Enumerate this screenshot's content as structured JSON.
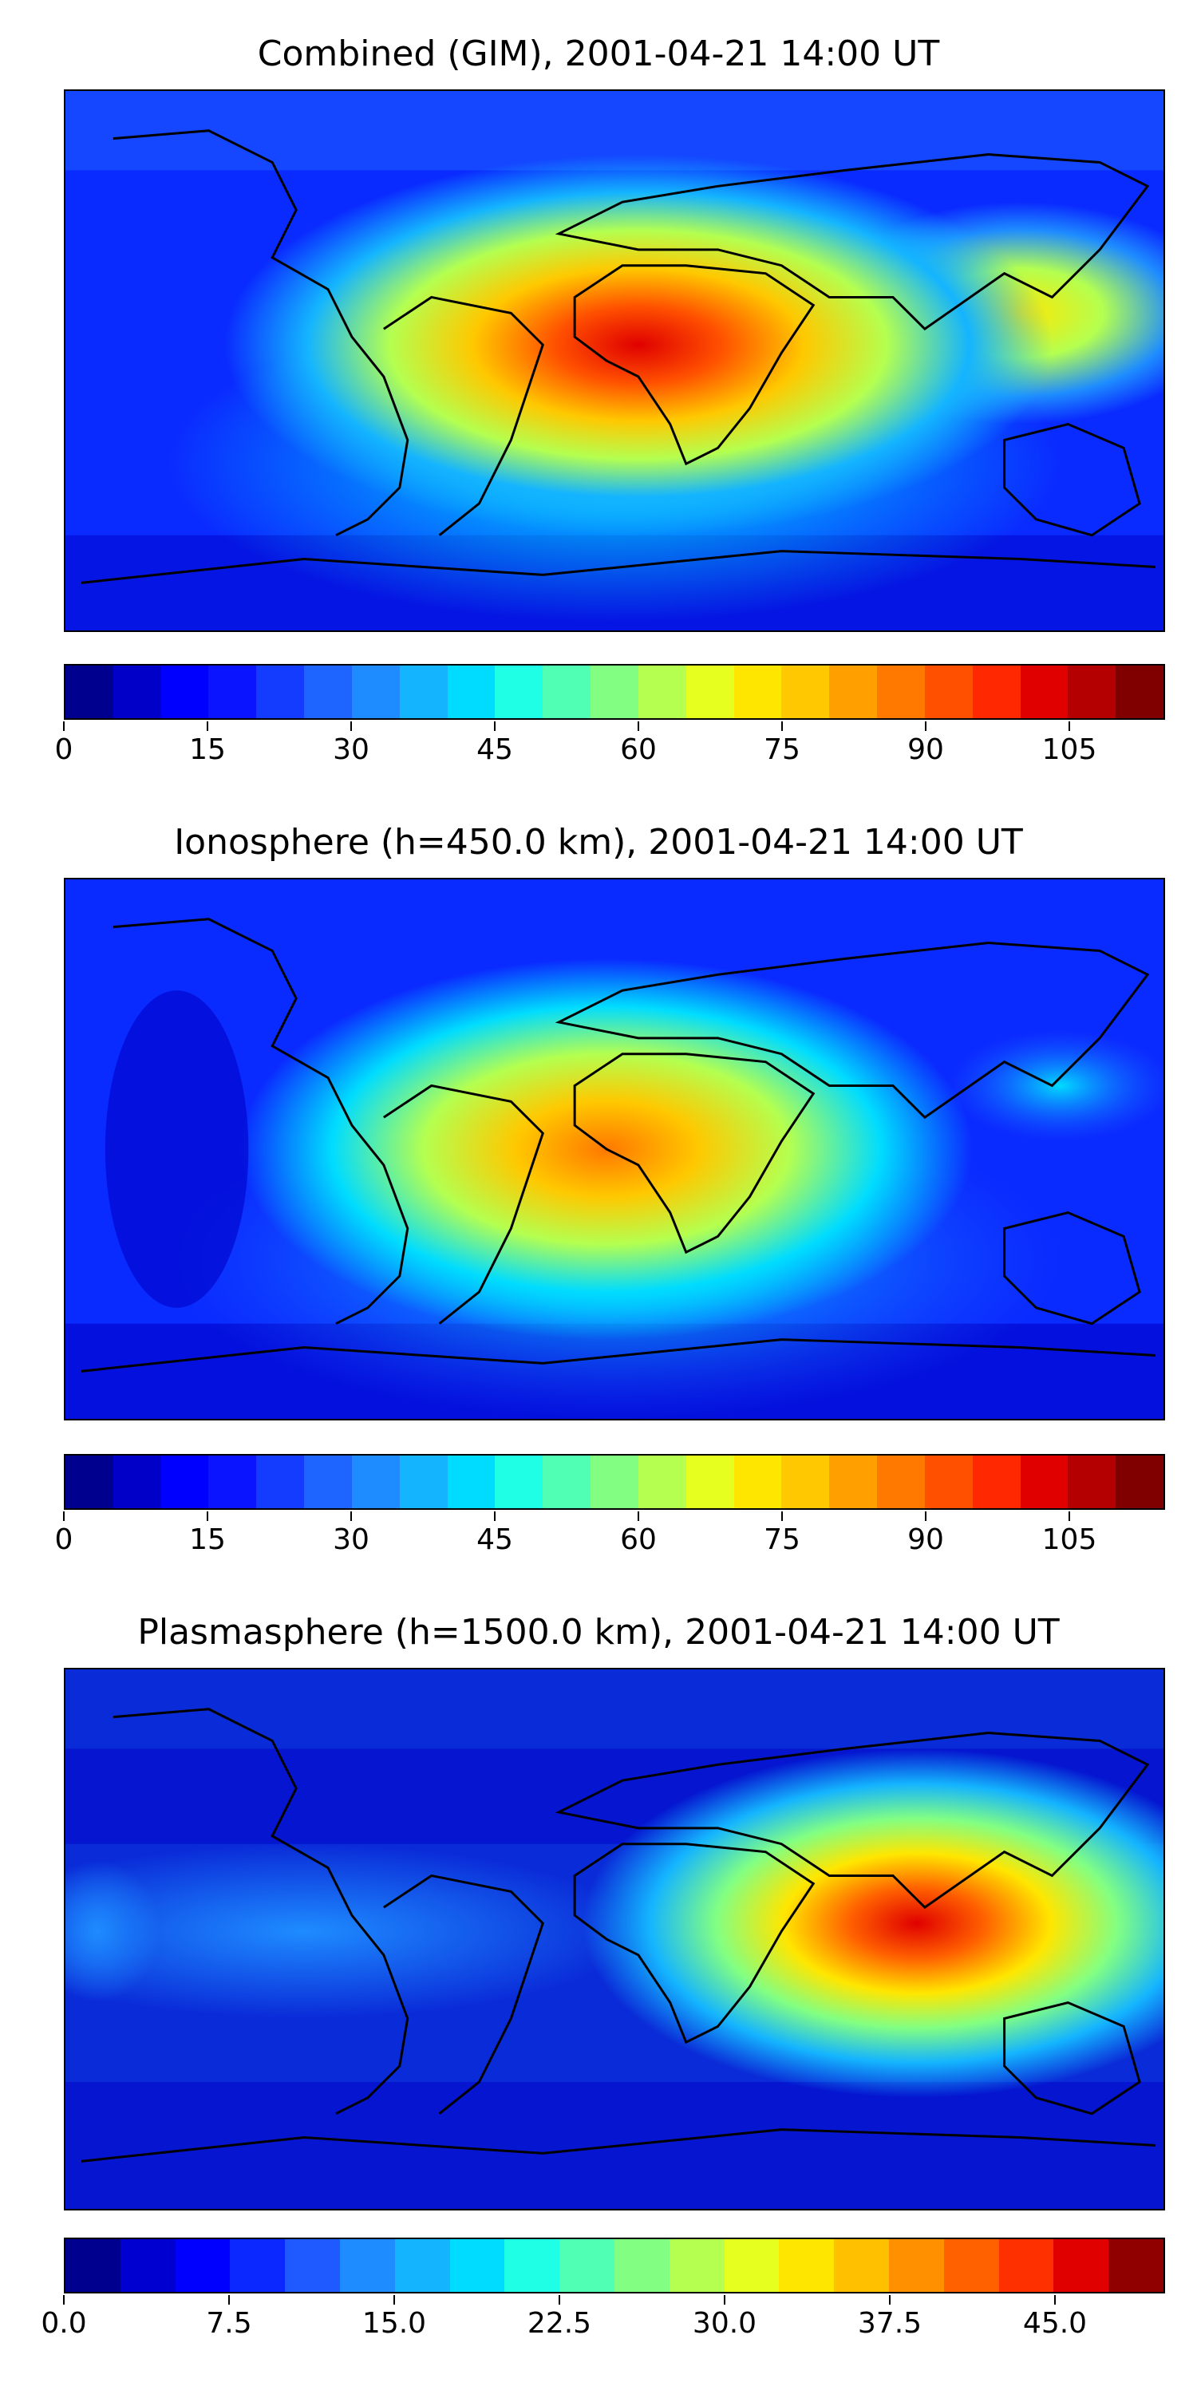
{
  "panels": [
    {
      "title": "Combined (GIM), 2001-04-21 14:00 UT",
      "colorbar": {
        "min": 0,
        "max": 115,
        "levels": 23,
        "tick_values": [
          0,
          15,
          30,
          45,
          60,
          75,
          90,
          105
        ],
        "tick_labels": [
          "0",
          "15",
          "30",
          "45",
          "60",
          "75",
          "90",
          "105"
        ]
      },
      "map_colors": {
        "background": "#0a2bff",
        "hotspots": [
          {
            "name": "africa-peak",
            "color": "#e00000"
          },
          {
            "name": "se-asia-band",
            "color": "#f6e000"
          }
        ]
      }
    },
    {
      "title": "Ionosphere  (h=450.0 km), 2001-04-21 14:00 UT",
      "colorbar": {
        "min": 0,
        "max": 115,
        "levels": 23,
        "tick_values": [
          0,
          15,
          30,
          45,
          60,
          75,
          90,
          105
        ],
        "tick_labels": [
          "0",
          "15",
          "30",
          "45",
          "60",
          "75",
          "90",
          "105"
        ]
      },
      "map_colors": {
        "background": "#0a2bff",
        "hotspots": [
          {
            "name": "africa-peak",
            "color": "#ff7000"
          }
        ]
      }
    },
    {
      "title": "Plasmasphere (h=1500.0 km), 2001-04-21 14:00 UT",
      "colorbar": {
        "min": 0,
        "max": 50,
        "levels": 20,
        "tick_values": [
          0,
          7.5,
          15,
          22.5,
          30,
          37.5,
          45
        ],
        "tick_labels": [
          "0.0",
          "7.5",
          "15.0",
          "22.5",
          "30.0",
          "37.5",
          "45.0"
        ]
      },
      "map_colors": {
        "background": "#0a2bd8",
        "hotspots": [
          {
            "name": "se-asia-peak",
            "color": "#e01a00"
          }
        ]
      }
    }
  ],
  "colormap": [
    "#00008f",
    "#0000c8",
    "#0000ff",
    "#0a14ff",
    "#143cff",
    "#1e64ff",
    "#1e8cff",
    "#14b4ff",
    "#00dcff",
    "#1effe6",
    "#50ffb4",
    "#82ff82",
    "#b4ff50",
    "#e6ff1e",
    "#ffe600",
    "#ffc800",
    "#ffa000",
    "#ff7800",
    "#ff5000",
    "#ff2800",
    "#e00000",
    "#b40000",
    "#800000"
  ],
  "colormap_plasma": [
    "#00008f",
    "#0000d0",
    "#0000ff",
    "#0a28ff",
    "#1e5aff",
    "#1e8cff",
    "#14b4ff",
    "#00dcff",
    "#1effe6",
    "#50ffb4",
    "#82ff82",
    "#b4ff50",
    "#e6ff1e",
    "#ffe600",
    "#ffc000",
    "#ff9000",
    "#ff6000",
    "#ff3000",
    "#e00000",
    "#900000"
  ]
}
